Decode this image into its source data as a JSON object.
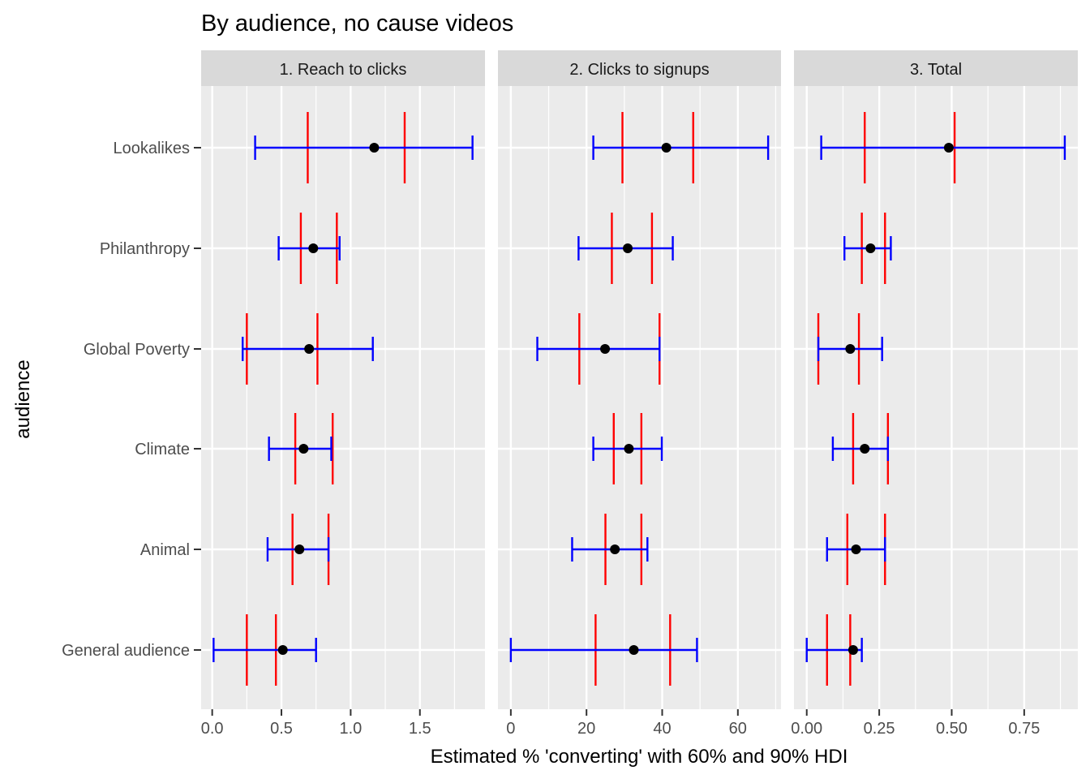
{
  "chart_data": {
    "type": "errorbar",
    "title": "By audience, no cause videos",
    "xlabel": "Estimated % 'converting' with 60% and 90% HDI",
    "ylabel": "audience",
    "categories": [
      "Lookalikes",
      "Philanthropy",
      "Global Poverty",
      "Climate",
      "Animal",
      "General audience"
    ],
    "colors": {
      "hdi90": "#0000ff",
      "hdi60": "#ff0000",
      "point": "#000000",
      "panel_bg": "#ebebeb",
      "strip_bg": "#d9d9d9"
    },
    "facets": [
      {
        "label": "1. Reach to clicks",
        "xlim": [
          -0.08,
          1.97
        ],
        "ticks": [
          0.0,
          0.5,
          1.0,
          1.5
        ],
        "tick_labels": [
          "0.0",
          "0.5",
          "1.0",
          "1.5"
        ],
        "data": [
          {
            "audience": "Lookalikes",
            "estimate": 1.17,
            "lo90": 0.31,
            "hi90": 1.88,
            "lo60": 0.69,
            "hi60": 1.39
          },
          {
            "audience": "Philanthropy",
            "estimate": 0.73,
            "lo90": 0.48,
            "hi90": 0.92,
            "lo60": 0.64,
            "hi60": 0.9
          },
          {
            "audience": "Global Poverty",
            "estimate": 0.7,
            "lo90": 0.22,
            "hi90": 1.16,
            "lo60": 0.25,
            "hi60": 0.76
          },
          {
            "audience": "Climate",
            "estimate": 0.66,
            "lo90": 0.41,
            "hi90": 0.86,
            "lo60": 0.6,
            "hi60": 0.87
          },
          {
            "audience": "Animal",
            "estimate": 0.63,
            "lo90": 0.4,
            "hi90": 0.84,
            "lo60": 0.58,
            "hi60": 0.84
          },
          {
            "audience": "General audience",
            "estimate": 0.51,
            "lo90": 0.01,
            "hi90": 0.75,
            "lo60": 0.25,
            "hi60": 0.46
          }
        ]
      },
      {
        "label": "2. Clicks to signups",
        "xlim": [
          -3.4,
          71.4
        ],
        "ticks": [
          0,
          20,
          40,
          60
        ],
        "tick_labels": [
          "0",
          "20",
          "40",
          "60"
        ],
        "data": [
          {
            "audience": "Lookalikes",
            "estimate": 41.1,
            "lo90": 21.8,
            "hi90": 68.0,
            "lo60": 29.5,
            "hi60": 48.2
          },
          {
            "audience": "Philanthropy",
            "estimate": 30.9,
            "lo90": 17.9,
            "hi90": 42.8,
            "lo60": 26.7,
            "hi60": 37.3
          },
          {
            "audience": "Global Poverty",
            "estimate": 24.9,
            "lo90": 7.0,
            "hi90": 39.3,
            "lo60": 18.1,
            "hi60": 39.3
          },
          {
            "audience": "Climate",
            "estimate": 31.2,
            "lo90": 21.8,
            "hi90": 39.9,
            "lo60": 27.2,
            "hi60": 34.5
          },
          {
            "audience": "Animal",
            "estimate": 27.5,
            "lo90": 16.2,
            "hi90": 36.1,
            "lo60": 25.0,
            "hi60": 34.5
          },
          {
            "audience": "General audience",
            "estimate": 32.5,
            "lo90": 0.0,
            "hi90": 49.2,
            "lo60": 22.4,
            "hi60": 42.1
          }
        ]
      },
      {
        "label": "3. Total",
        "xlim": [
          -0.044,
          0.935
        ],
        "ticks": [
          0.0,
          0.25,
          0.5,
          0.75
        ],
        "tick_labels": [
          "0.00",
          "0.25",
          "0.50",
          "0.75"
        ],
        "data": [
          {
            "audience": "Lookalikes",
            "estimate": 0.49,
            "lo90": 0.05,
            "hi90": 0.89,
            "lo60": 0.2,
            "hi60": 0.51
          },
          {
            "audience": "Philanthropy",
            "estimate": 0.22,
            "lo90": 0.13,
            "hi90": 0.29,
            "lo60": 0.19,
            "hi60": 0.27
          },
          {
            "audience": "Global Poverty",
            "estimate": 0.15,
            "lo90": 0.04,
            "hi90": 0.26,
            "lo60": 0.04,
            "hi60": 0.18
          },
          {
            "audience": "Climate",
            "estimate": 0.2,
            "lo90": 0.09,
            "hi90": 0.28,
            "lo60": 0.16,
            "hi60": 0.28
          },
          {
            "audience": "Animal",
            "estimate": 0.17,
            "lo90": 0.07,
            "hi90": 0.27,
            "lo60": 0.14,
            "hi60": 0.27
          },
          {
            "audience": "General audience",
            "estimate": 0.16,
            "lo90": 0.0,
            "hi90": 0.19,
            "lo60": 0.07,
            "hi60": 0.15
          }
        ]
      }
    ]
  }
}
